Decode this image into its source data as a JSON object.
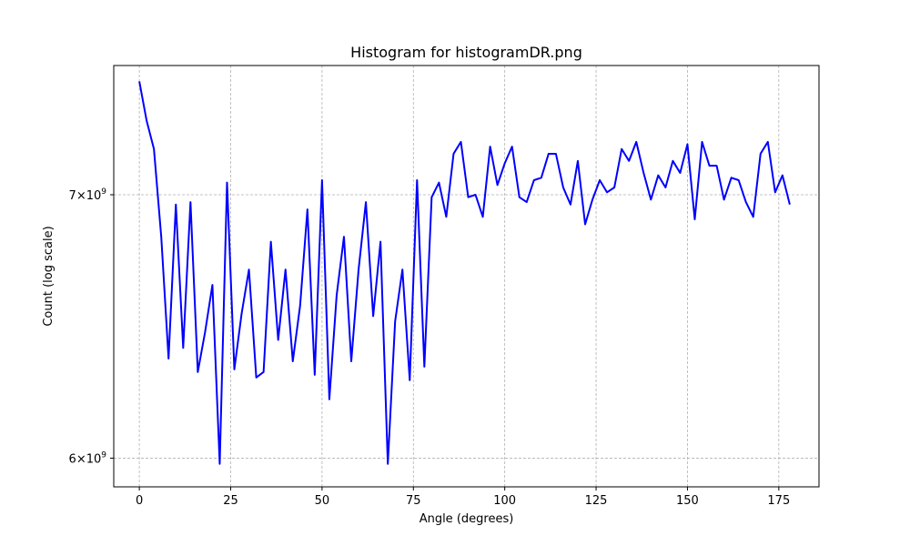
{
  "chart_data": {
    "type": "line",
    "title": "Histogram for histogramDR.png",
    "xlabel": "Angle (degrees)",
    "ylabel": "Count (log scale)",
    "xscale": "linear",
    "yscale": "log",
    "xlim": [
      -7,
      186
    ],
    "ylim": [
      5900000000.0,
      7550000000.0
    ],
    "grid": true,
    "xticks": [
      {
        "value": 0,
        "label": "0"
      },
      {
        "value": 25,
        "label": "25"
      },
      {
        "value": 50,
        "label": "50"
      },
      {
        "value": 75,
        "label": "75"
      },
      {
        "value": 100,
        "label": "100"
      },
      {
        "value": 125,
        "label": "125"
      },
      {
        "value": 150,
        "label": "150"
      },
      {
        "value": 175,
        "label": "175"
      }
    ],
    "yticks": [
      {
        "value": 6000000000.0,
        "mantissa": "6",
        "base": "10",
        "exp": "9"
      },
      {
        "value": 7000000000.0,
        "mantissa": "7",
        "base": "10",
        "exp": "9"
      }
    ],
    "series": [
      {
        "color": "#0000ff",
        "x": [
          0,
          2,
          4,
          6,
          8,
          10,
          12,
          14,
          16,
          18,
          20,
          22,
          24,
          26,
          28,
          30,
          32,
          34,
          36,
          38,
          40,
          42,
          44,
          46,
          48,
          50,
          52,
          54,
          56,
          58,
          60,
          62,
          64,
          66,
          68,
          70,
          72,
          74,
          76,
          78,
          80,
          82,
          84,
          86,
          88,
          90,
          92,
          94,
          96,
          98,
          100,
          102,
          104,
          106,
          108,
          110,
          112,
          114,
          116,
          118,
          120,
          122,
          124,
          126,
          128,
          130,
          132,
          134,
          136,
          138,
          140,
          142,
          144,
          146,
          148,
          150,
          152,
          154,
          156,
          158,
          160,
          162,
          164,
          166,
          168,
          170,
          172,
          174,
          176,
          178
        ],
        "y": [
          7480000000.0,
          7310000000.0,
          7190000000.0,
          6830000000.0,
          6360000000.0,
          6960000000.0,
          6400000000.0,
          6970000000.0,
          6310000000.0,
          6460000000.0,
          6640000000.0,
          5980000000.0,
          7050000000.0,
          6320000000.0,
          6530000000.0,
          6700000000.0,
          6290000000.0,
          6310000000.0,
          6810000000.0,
          6430000000.0,
          6700000000.0,
          6350000000.0,
          6560000000.0,
          6940000000.0,
          6300000000.0,
          7060000000.0,
          6210000000.0,
          6600000000.0,
          6830000000.0,
          6350000000.0,
          6700000000.0,
          6970000000.0,
          6520000000.0,
          6810000000.0,
          5980000000.0,
          6500000000.0,
          6700000000.0,
          6280000000.0,
          7060000000.0,
          6330000000.0,
          6990000000.0,
          7050000000.0,
          6910000000.0,
          7170000000.0,
          7220000000.0,
          6990000000.0,
          7000000000.0,
          6910000000.0,
          7200000000.0,
          7040000000.0,
          7130000000.0,
          7200000000.0,
          6990000000.0,
          6970000000.0,
          7060000000.0,
          7070000000.0,
          7170000000.0,
          7170000000.0,
          7030000000.0,
          6960000000.0,
          7140000000.0,
          6880000000.0,
          6980000000.0,
          7060000000.0,
          7010000000.0,
          7030000000.0,
          7190000000.0,
          7140000000.0,
          7220000000.0,
          7090000000.0,
          6980000000.0,
          7080000000.0,
          7030000000.0,
          7140000000.0,
          7090000000.0,
          7210000000.0,
          6900000000.0,
          7220000000.0,
          7120000000.0,
          7120000000.0,
          6980000000.0,
          7070000000.0,
          7060000000.0,
          6970000000.0,
          6910000000.0,
          7170000000.0,
          7220000000.0,
          7010000000.0,
          7080000000.0,
          6960000000.0
        ]
      }
    ]
  }
}
